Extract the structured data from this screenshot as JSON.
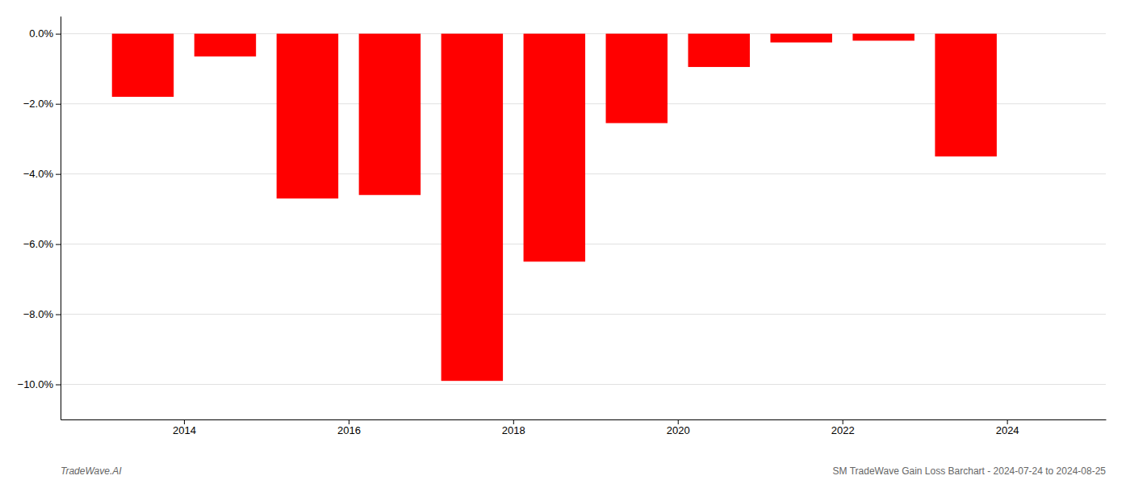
{
  "chart_data": {
    "type": "bar",
    "x": [
      2013.5,
      2014.5,
      2015.5,
      2016.5,
      2017.5,
      2018.5,
      2019.5,
      2020.5,
      2021.5,
      2022.5,
      2023.5
    ],
    "values": [
      -1.8,
      -0.65,
      -4.7,
      -4.6,
      -9.9,
      -6.5,
      -2.55,
      -0.95,
      -0.25,
      -0.2,
      -3.5
    ],
    "color": "#ff0000",
    "xlim": [
      2012.5,
      2025.2
    ],
    "xticks": [
      2014,
      2016,
      2018,
      2020,
      2022,
      2024
    ],
    "ylim": [
      -11.0,
      0.5
    ],
    "yticks": [
      {
        "value": 0.0,
        "label": "0.0%"
      },
      {
        "value": -2.0,
        "label": "−2.0%"
      },
      {
        "value": -4.0,
        "label": "−4.0%"
      },
      {
        "value": -6.0,
        "label": "−6.0%"
      },
      {
        "value": -8.0,
        "label": "−8.0%"
      },
      {
        "value": -10.0,
        "label": "−10.0%"
      }
    ],
    "grid": true,
    "annotations": [
      "TradeWave.AI",
      "SM TradeWave Gain Loss Barchart - 2024-07-24 to 2024-08-25"
    ]
  }
}
